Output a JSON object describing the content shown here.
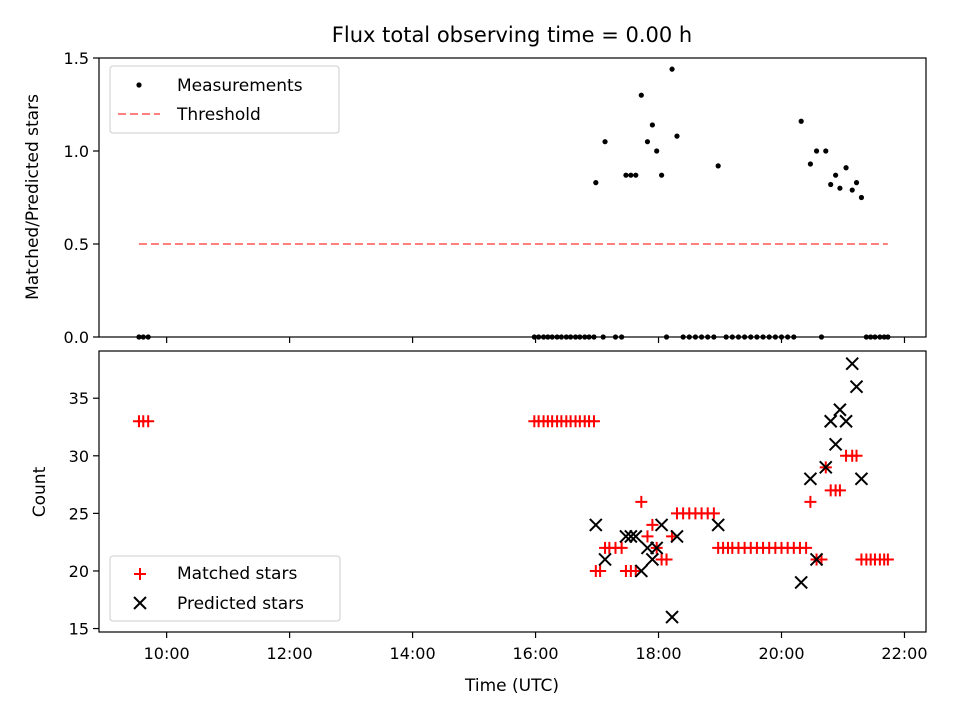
{
  "chart_data": [
    {
      "type": "scatter",
      "title": "Flux total observing time = 0.00 h",
      "xlabel": "",
      "ylabel": "Matched/Predicted stars",
      "xlim": [
        8.9,
        22.35
      ],
      "ylim": [
        0.0,
        1.5
      ],
      "xticks": [
        10,
        12,
        14,
        16,
        18,
        20,
        22
      ],
      "yticks": [
        0.0,
        0.5,
        1.0,
        1.5
      ],
      "ytick_labels": [
        "0.0",
        "0.5",
        "1.0",
        "1.5"
      ],
      "legend_position": "upper-left",
      "series": [
        {
          "name": "Measurements",
          "marker": "dot",
          "color": "#000000",
          "points": [
            [
              9.55,
              0
            ],
            [
              9.62,
              0
            ],
            [
              9.7,
              0
            ],
            [
              15.98,
              0
            ],
            [
              16.05,
              0
            ],
            [
              16.13,
              0
            ],
            [
              16.2,
              0
            ],
            [
              16.27,
              0
            ],
            [
              16.35,
              0
            ],
            [
              16.42,
              0
            ],
            [
              16.5,
              0
            ],
            [
              16.57,
              0
            ],
            [
              16.65,
              0
            ],
            [
              16.72,
              0
            ],
            [
              16.8,
              0
            ],
            [
              16.87,
              0
            ],
            [
              16.95,
              0
            ],
            [
              16.98,
              0.83
            ],
            [
              17.1,
              0
            ],
            [
              17.13,
              1.05
            ],
            [
              17.3,
              0
            ],
            [
              17.4,
              0
            ],
            [
              17.47,
              0.87
            ],
            [
              17.55,
              0.87
            ],
            [
              17.63,
              0.87
            ],
            [
              17.72,
              1.3
            ],
            [
              17.82,
              1.05
            ],
            [
              17.9,
              1.14
            ],
            [
              17.97,
              1.0
            ],
            [
              18.05,
              0.87
            ],
            [
              18.13,
              0
            ],
            [
              18.22,
              1.44
            ],
            [
              18.3,
              1.08
            ],
            [
              18.4,
              0
            ],
            [
              18.5,
              0
            ],
            [
              18.6,
              0
            ],
            [
              18.7,
              0
            ],
            [
              18.8,
              0
            ],
            [
              18.9,
              0
            ],
            [
              18.97,
              0.92
            ],
            [
              19.1,
              0
            ],
            [
              19.2,
              0
            ],
            [
              19.3,
              0
            ],
            [
              19.4,
              0
            ],
            [
              19.5,
              0
            ],
            [
              19.6,
              0
            ],
            [
              19.7,
              0
            ],
            [
              19.8,
              0
            ],
            [
              19.9,
              0
            ],
            [
              20.0,
              0
            ],
            [
              20.1,
              0
            ],
            [
              20.2,
              0
            ],
            [
              20.32,
              1.16
            ],
            [
              20.47,
              0.93
            ],
            [
              20.57,
              1.0
            ],
            [
              20.65,
              0
            ],
            [
              20.72,
              1.0
            ],
            [
              20.8,
              0.82
            ],
            [
              20.88,
              0.87
            ],
            [
              20.95,
              0.8
            ],
            [
              21.05,
              0.91
            ],
            [
              21.15,
              0.79
            ],
            [
              21.22,
              0.83
            ],
            [
              21.3,
              0.75
            ],
            [
              21.38,
              0
            ],
            [
              21.45,
              0
            ],
            [
              21.52,
              0
            ],
            [
              21.6,
              0
            ],
            [
              21.67,
              0
            ],
            [
              21.73,
              0
            ]
          ]
        },
        {
          "name": "Threshold",
          "marker": "dashed-line",
          "color": "#ff7f7f",
          "x": [
            9.55,
            21.73
          ],
          "y": [
            0.5,
            0.5
          ]
        }
      ]
    },
    {
      "type": "scatter",
      "title": "",
      "xlabel": "Time (UTC)",
      "ylabel": "Count",
      "xlim": [
        8.9,
        22.35
      ],
      "ylim": [
        14.7,
        39.1
      ],
      "xticks": [
        10,
        12,
        14,
        16,
        18,
        20,
        22
      ],
      "xtick_labels": [
        "10:00",
        "12:00",
        "14:00",
        "16:00",
        "18:00",
        "20:00",
        "22:00"
      ],
      "yticks": [
        15,
        20,
        25,
        30,
        35
      ],
      "ytick_labels": [
        "15",
        "20",
        "25",
        "30",
        "35"
      ],
      "legend_position": "lower-left",
      "series": [
        {
          "name": "Matched stars",
          "marker": "plus",
          "color": "#ff0000",
          "points": [
            [
              9.55,
              33
            ],
            [
              9.62,
              33
            ],
            [
              9.7,
              33
            ],
            [
              15.98,
              33
            ],
            [
              16.05,
              33
            ],
            [
              16.13,
              33
            ],
            [
              16.2,
              33
            ],
            [
              16.27,
              33
            ],
            [
              16.35,
              33
            ],
            [
              16.42,
              33
            ],
            [
              16.5,
              33
            ],
            [
              16.57,
              33
            ],
            [
              16.65,
              33
            ],
            [
              16.72,
              33
            ],
            [
              16.8,
              33
            ],
            [
              16.87,
              33
            ],
            [
              16.95,
              33
            ],
            [
              16.98,
              20
            ],
            [
              17.05,
              20
            ],
            [
              17.13,
              22
            ],
            [
              17.2,
              22
            ],
            [
              17.3,
              22
            ],
            [
              17.4,
              22
            ],
            [
              17.47,
              20
            ],
            [
              17.55,
              20
            ],
            [
              17.63,
              20
            ],
            [
              17.72,
              26
            ],
            [
              17.82,
              23
            ],
            [
              17.9,
              24
            ],
            [
              17.97,
              22
            ],
            [
              18.05,
              21
            ],
            [
              18.13,
              21
            ],
            [
              18.22,
              23
            ],
            [
              18.3,
              25
            ],
            [
              18.4,
              25
            ],
            [
              18.5,
              25
            ],
            [
              18.6,
              25
            ],
            [
              18.7,
              25
            ],
            [
              18.8,
              25
            ],
            [
              18.9,
              25
            ],
            [
              18.97,
              22
            ],
            [
              19.05,
              22
            ],
            [
              19.13,
              22
            ],
            [
              19.2,
              22
            ],
            [
              19.3,
              22
            ],
            [
              19.4,
              22
            ],
            [
              19.5,
              22
            ],
            [
              19.6,
              22
            ],
            [
              19.7,
              22
            ],
            [
              19.8,
              22
            ],
            [
              19.9,
              22
            ],
            [
              20.0,
              22
            ],
            [
              20.1,
              22
            ],
            [
              20.2,
              22
            ],
            [
              20.3,
              22
            ],
            [
              20.4,
              22
            ],
            [
              20.47,
              26
            ],
            [
              20.57,
              21
            ],
            [
              20.65,
              21
            ],
            [
              20.72,
              29
            ],
            [
              20.8,
              27
            ],
            [
              20.88,
              27
            ],
            [
              20.95,
              27
            ],
            [
              21.05,
              30
            ],
            [
              21.15,
              30
            ],
            [
              21.22,
              30
            ],
            [
              21.3,
              21
            ],
            [
              21.38,
              21
            ],
            [
              21.45,
              21
            ],
            [
              21.52,
              21
            ],
            [
              21.6,
              21
            ],
            [
              21.67,
              21
            ],
            [
              21.73,
              21
            ]
          ]
        },
        {
          "name": "Predicted stars",
          "marker": "x",
          "color": "#000000",
          "points": [
            [
              16.98,
              24
            ],
            [
              17.13,
              21
            ],
            [
              17.47,
              23
            ],
            [
              17.55,
              23
            ],
            [
              17.63,
              23
            ],
            [
              17.72,
              20
            ],
            [
              17.82,
              22
            ],
            [
              17.9,
              21
            ],
            [
              17.97,
              22
            ],
            [
              18.05,
              24
            ],
            [
              18.22,
              16
            ],
            [
              18.3,
              23
            ],
            [
              18.97,
              24
            ],
            [
              20.32,
              19
            ],
            [
              20.47,
              28
            ],
            [
              20.57,
              21
            ],
            [
              20.72,
              29
            ],
            [
              20.8,
              33
            ],
            [
              20.88,
              31
            ],
            [
              20.95,
              34
            ],
            [
              21.05,
              33
            ],
            [
              21.15,
              38
            ],
            [
              21.22,
              36
            ],
            [
              21.3,
              28
            ]
          ]
        }
      ]
    }
  ]
}
